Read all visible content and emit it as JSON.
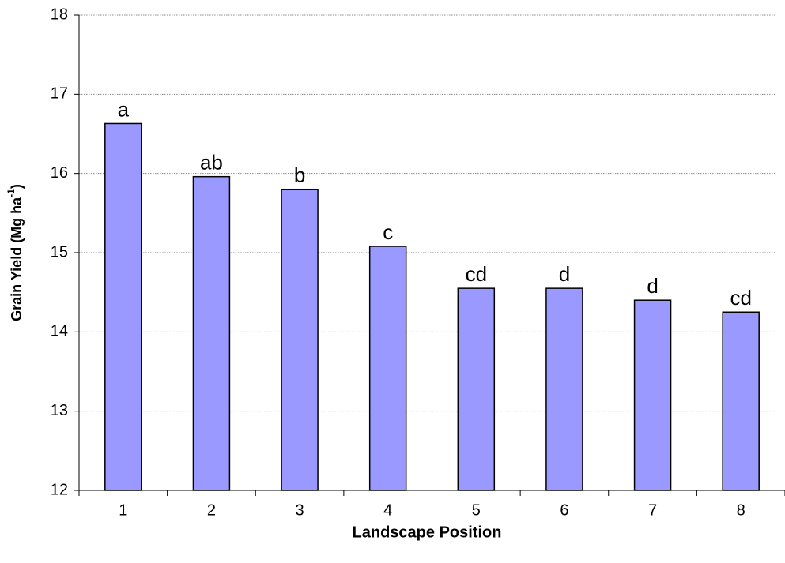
{
  "chart_data": {
    "type": "bar",
    "x_label": "Landscape Position",
    "y_label": {
      "text": "Grain Yield (Mg ha",
      "sup": "-1",
      "end": ")"
    },
    "categories": [
      "1",
      "2",
      "3",
      "4",
      "5",
      "6",
      "7",
      "8"
    ],
    "values": [
      16.63,
      15.96,
      15.8,
      15.08,
      14.55,
      14.55,
      14.4,
      14.25
    ],
    "annotations": [
      "a",
      "ab",
      "b",
      "c",
      "cd",
      "d",
      "d",
      "cd"
    ],
    "color": "#9999ff",
    "ylim": [
      12,
      18
    ],
    "yticks": [
      12,
      13,
      14,
      15,
      16,
      17,
      18
    ],
    "grid": true
  }
}
